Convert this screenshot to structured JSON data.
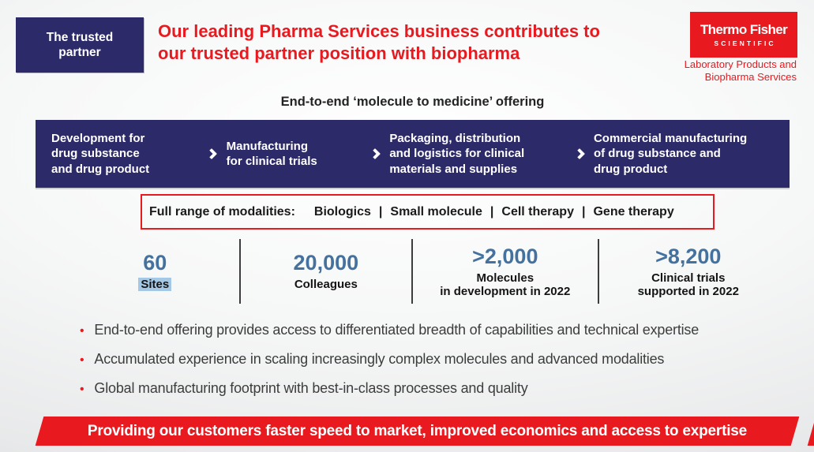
{
  "slide": {
    "badge": {
      "line1": "The trusted",
      "line2": "partner"
    },
    "title": {
      "line1": "Our leading Pharma Services business contributes to",
      "line2": "our trusted partner position with biopharma"
    },
    "logo": {
      "name": "Thermo Fisher",
      "sub": "SCIENTIFIC",
      "division1": "Laboratory Products and",
      "division2": "Biopharma Services"
    },
    "pipeline": {
      "heading": "End-to-end ‘molecule to medicine’ offering",
      "stages": [
        {
          "lines": [
            "Development for",
            "drug substance",
            "and drug product"
          ]
        },
        {
          "lines": [
            "Manufacturing",
            "for clinical trials"
          ]
        },
        {
          "lines": [
            "Packaging, distribution",
            "and logistics for clinical",
            "materials and supplies"
          ]
        },
        {
          "lines": [
            "Commercial manufacturing",
            "of drug substance and",
            "drug product"
          ]
        }
      ]
    },
    "modalities": {
      "prefix": "Full range of modalities:",
      "separator": "|",
      "items": [
        "Biologics",
        "Small molecule",
        "Cell therapy",
        "Gene therapy"
      ]
    },
    "stats": [
      {
        "value": "60",
        "lines": [
          "Sites"
        ],
        "highlighted": true
      },
      {
        "value": "20,000",
        "lines": [
          "Colleagues"
        ]
      },
      {
        "value": ">2,000",
        "lines": [
          "Molecules",
          "in development in 2022"
        ]
      },
      {
        "value": ">8,200",
        "lines": [
          "Clinical trials",
          "supported in 2022"
        ]
      }
    ],
    "bullets": {
      "marker": "•",
      "items": [
        "End-to-end offering provides access to differentiated breadth of capabilities and technical expertise",
        "Accumulated experience in scaling increasingly complex molecules and advanced modalities",
        "Global manufacturing footprint with best-in-class processes and quality"
      ]
    },
    "footer": {
      "message": "Providing our customers faster speed to market, improved economics and access to expertise"
    },
    "icons": {
      "stage_separator": "chevron-right"
    },
    "colors": {
      "navy": "#2d2a6a",
      "red": "#e8191f",
      "stat_blue": "#44719e",
      "highlight_blue": "#a5c8e4"
    }
  }
}
